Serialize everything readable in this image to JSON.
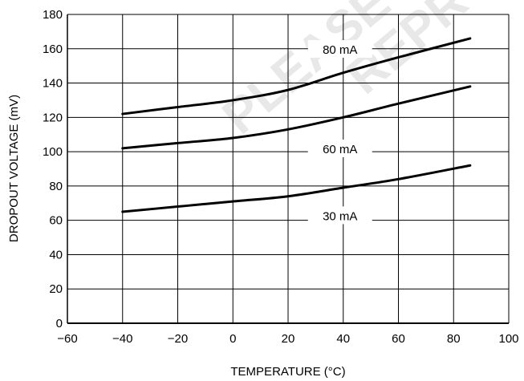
{
  "chart_data": {
    "type": "line",
    "xlabel": "TEMPERATURE (°C)",
    "ylabel": "DROPOUT VOLTAGE (mV)",
    "xlim": [
      -60,
      100
    ],
    "ylim": [
      0,
      180
    ],
    "xticks": [
      -60,
      -40,
      -20,
      0,
      20,
      40,
      60,
      80,
      100
    ],
    "yticks": [
      0,
      20,
      40,
      60,
      80,
      100,
      120,
      140,
      160,
      180
    ],
    "grid": true,
    "watermark": [
      "PLEASE",
      "REPRODUCE"
    ],
    "series": [
      {
        "name": "80 mA",
        "x": [
          -40,
          -20,
          0,
          20,
          40,
          60,
          86
        ],
        "y": [
          122,
          126,
          130,
          136,
          146,
          155,
          166
        ]
      },
      {
        "name": "60 mA",
        "x": [
          -40,
          -20,
          0,
          20,
          40,
          60,
          86
        ],
        "y": [
          102,
          105,
          108,
          113,
          120,
          128,
          138
        ]
      },
      {
        "name": "30 mA",
        "x": [
          -40,
          -20,
          0,
          20,
          40,
          60,
          86
        ],
        "y": [
          65,
          68,
          71,
          74,
          79,
          84,
          92
        ]
      }
    ]
  }
}
